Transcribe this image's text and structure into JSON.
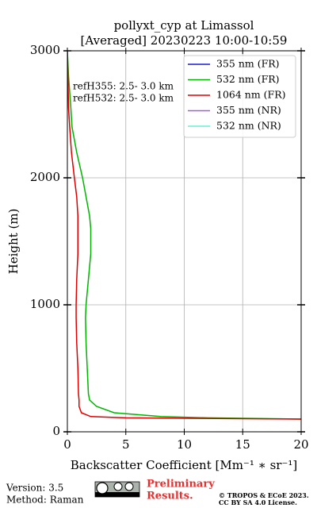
{
  "chart_data": {
    "type": "line",
    "title": "pollyxt_cyp at Limassol",
    "subtitle": "[Averaged] 20230223 10:00-10:59",
    "x_label": "Backscatter Coefficient [Mm⁻¹ ∗ sr⁻¹]",
    "y_label": "Height (m)",
    "annotations": [
      "refH355:  2.5- 3.0 km",
      "refH532:  2.5- 3.0 km"
    ],
    "y": [
      100,
      110,
      120,
      150,
      200,
      250,
      300,
      500,
      700,
      900,
      1000,
      1200,
      1400,
      1600,
      1700,
      1850,
      2000,
      2200,
      2400,
      2550,
      2800,
      3000
    ],
    "series": [
      {
        "name": "355 nm (FR)",
        "color": "#1c1cd6",
        "values": [
          null,
          null,
          null,
          null,
          null,
          null,
          null,
          null,
          null,
          null,
          null,
          null,
          null,
          null,
          null,
          null,
          null,
          null,
          null,
          null,
          null,
          null
        ]
      },
      {
        "name": "532 nm (FR)",
        "color": "#00b400",
        "values": [
          20,
          12,
          8,
          4,
          2.5,
          1.9,
          1.8,
          1.7,
          1.6,
          1.55,
          1.6,
          1.8,
          2.0,
          2.0,
          1.9,
          1.6,
          1.3,
          0.8,
          0.4,
          0.3,
          0.1,
          0
        ]
      },
      {
        "name": "1064 nm (FR)",
        "color": "#e00000",
        "values": [
          20,
          5,
          2,
          1.2,
          1.0,
          1.0,
          0.95,
          0.9,
          0.8,
          0.75,
          0.75,
          0.8,
          0.9,
          0.9,
          0.9,
          0.8,
          0.6,
          0.35,
          0.2,
          0.1,
          0.05,
          0
        ]
      },
      {
        "name": "355 nm (NR)",
        "color": "#a65ae0",
        "values": [
          null,
          null,
          null,
          null,
          null,
          null,
          null,
          null,
          null,
          null,
          null,
          null,
          null,
          null,
          null,
          null,
          null,
          null,
          null,
          null,
          null,
          null
        ]
      },
      {
        "name": "532 nm (NR)",
        "color": "#66f0d0",
        "values": [
          null,
          null,
          null,
          null,
          null,
          null,
          null,
          null,
          null,
          null,
          null,
          null,
          null,
          null,
          null,
          null,
          null,
          null,
          null,
          null,
          null,
          null
        ]
      }
    ],
    "xlim": [
      0,
      20
    ],
    "xticks": [
      0,
      5,
      10,
      15,
      20
    ],
    "ylim": [
      0,
      3000
    ],
    "yticks": [
      0,
      1000,
      2000,
      3000
    ],
    "grid": true,
    "legend": "upper right"
  },
  "footer": {
    "version": "Version: 3.5",
    "method": "Method: Raman",
    "status": [
      "Preliminary",
      "Results."
    ],
    "copyright": [
      "© TROPOS & ECoE 2023.",
      "CC BY SA 4.0 License."
    ]
  }
}
